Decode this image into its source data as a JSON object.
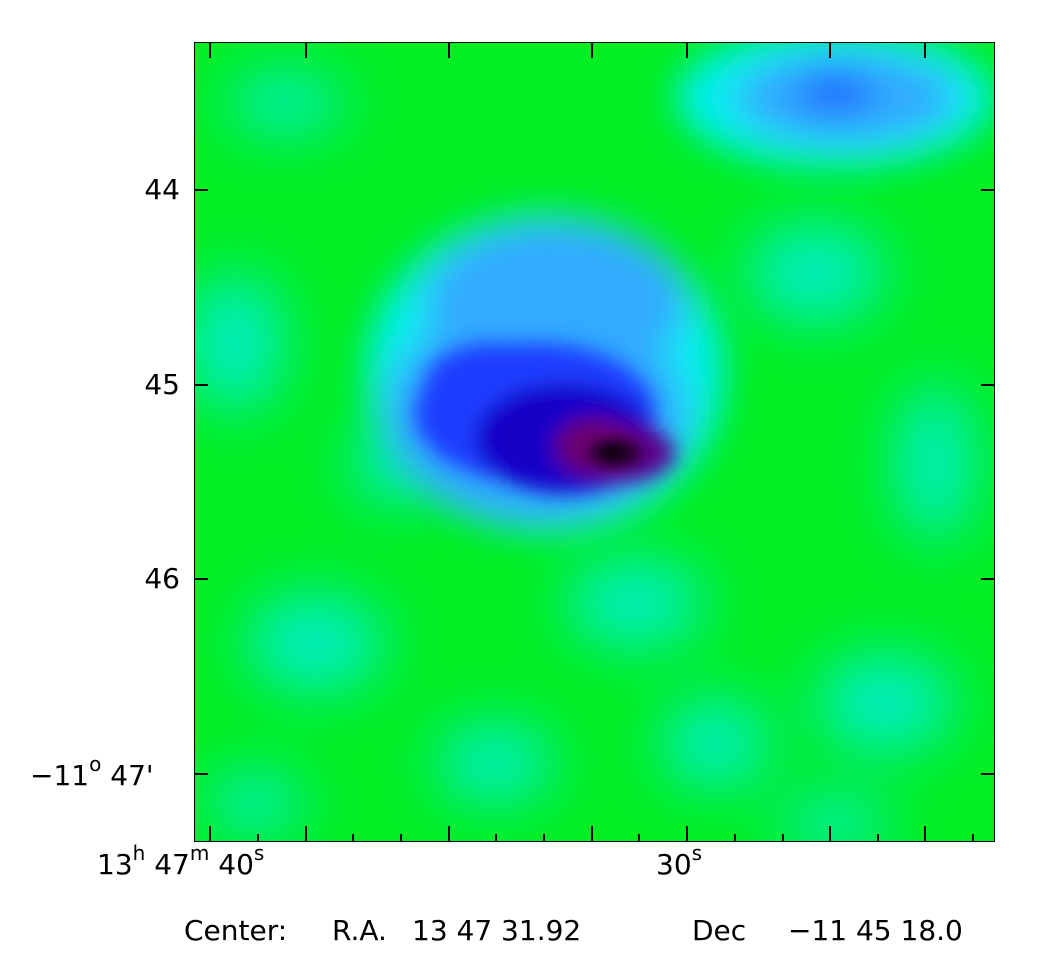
{
  "y_axis": {
    "labels": [
      "44",
      "45",
      "46"
    ],
    "bottom_label": {
      "deg": "−11",
      "deg_sym": "o",
      "arcmin": "47'"
    }
  },
  "x_axis": {
    "left_label": {
      "h": "13",
      "h_unit": "h",
      "m": "47",
      "m_unit": "m",
      "s": "40",
      "s_unit": "s"
    },
    "mid_label": {
      "s": "30",
      "s_unit": "s"
    }
  },
  "footer": {
    "center_label": "Center:",
    "ra_label": "R.A.",
    "ra_value": "13 47 31.92",
    "dec_label": "Dec",
    "dec_value": "−11 45 18.0"
  },
  "colors": {
    "background": "#00ee22",
    "cyan": "#00eeee",
    "light_blue": "#2aa8ff",
    "blue": "#1a3cff",
    "deep_blue": "#1800c8",
    "purple": "#6a0070",
    "core": "#1a0010"
  }
}
